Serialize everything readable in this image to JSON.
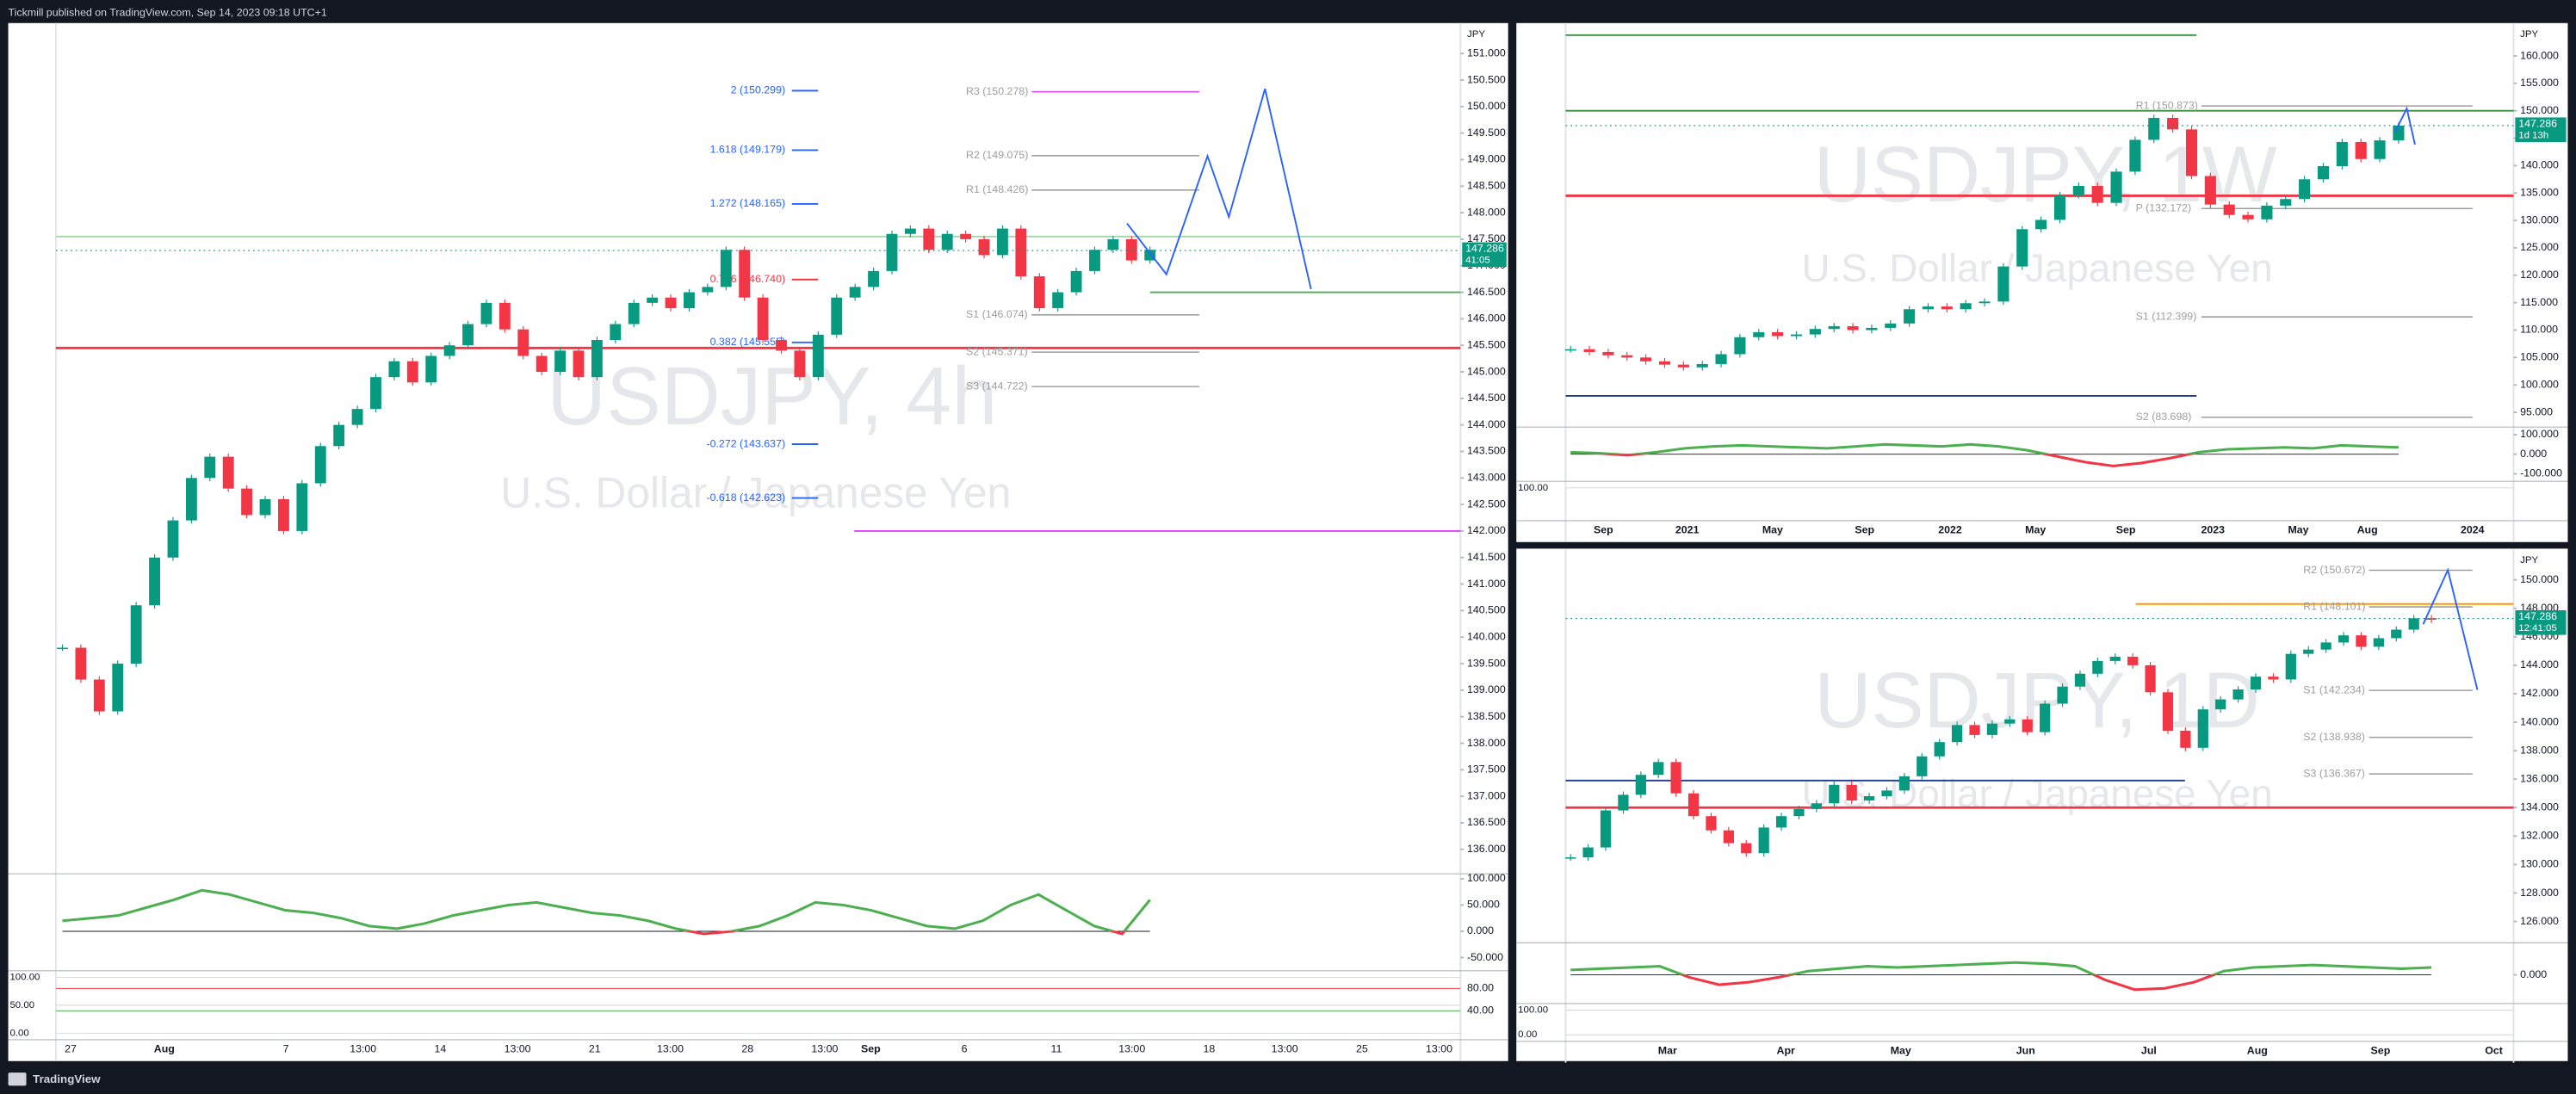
{
  "header": {
    "text": "Tickmill published on TradingView.com, Sep 14, 2023 09:18 UTC+1"
  },
  "footer": {
    "brand": "TradingView"
  },
  "panels": [
    {
      "symbol": "USDJPY, 4h",
      "description": "U.S. Dollar / Japanese Yen",
      "currency": "JPY",
      "ylim": [
        135.6,
        151.45
      ],
      "yticks": [
        {
          "value": 151,
          "label": "151.000"
        },
        {
          "value": 150.5,
          "label": "150.500"
        },
        {
          "value": 150,
          "label": "150.000"
        },
        {
          "value": 149.5,
          "label": "149.500"
        },
        {
          "value": 149,
          "label": "149.000"
        },
        {
          "value": 148.5,
          "label": "148.500"
        },
        {
          "value": 148,
          "label": "148.000"
        },
        {
          "value": 147.5,
          "label": "147.500"
        },
        {
          "value": 147,
          "label": "147.000"
        },
        {
          "value": 146.5,
          "label": "146.500"
        },
        {
          "value": 146,
          "label": "146.000"
        },
        {
          "value": 145.5,
          "label": "145.500"
        },
        {
          "value": 145,
          "label": "145.000"
        },
        {
          "value": 144.5,
          "label": "144.500"
        },
        {
          "value": 144,
          "label": "144.000"
        },
        {
          "value": 143.5,
          "label": "143.500"
        },
        {
          "value": 143,
          "label": "143.000"
        },
        {
          "value": 142.5,
          "label": "142.500"
        },
        {
          "value": 142,
          "label": "142.000"
        },
        {
          "value": 141.5,
          "label": "141.500"
        },
        {
          "value": 141,
          "label": "141.000"
        },
        {
          "value": 140.5,
          "label": "140.500"
        },
        {
          "value": 140,
          "label": "140.000"
        },
        {
          "value": 139.5,
          "label": "139.500"
        },
        {
          "value": 139,
          "label": "139.000"
        },
        {
          "value": 138.5,
          "label": "138.500"
        },
        {
          "value": 138,
          "label": "138.000"
        },
        {
          "value": 137.5,
          "label": "137.500"
        },
        {
          "value": 137,
          "label": "137.000"
        },
        {
          "value": 136.5,
          "label": "136.500"
        },
        {
          "value": 136,
          "label": "136.000"
        }
      ],
      "last_price": {
        "value": 147.286,
        "label": "147.286",
        "countdown": "41:05"
      },
      "levels": [
        {
          "label": "2 (150.299)",
          "value": 150.299,
          "kind": "fib",
          "color": "#2962ff"
        },
        {
          "label": "R3 (150.278)",
          "value": 150.278,
          "kind": "pivot",
          "color": "#e040fb"
        },
        {
          "label": "1.618 (149.179)",
          "value": 149.179,
          "kind": "fib",
          "color": "#2962ff"
        },
        {
          "label": "R2 (149.075)",
          "value": 149.075,
          "kind": "pivot",
          "color": "#9e9e9e"
        },
        {
          "label": "R1 (148.426)",
          "value": 148.426,
          "kind": "pivot",
          "color": "#9e9e9e"
        },
        {
          "label": "1.272 (148.165)",
          "value": 148.165,
          "kind": "fib",
          "color": "#2962ff"
        },
        {
          "label": "0.786 (146.740)",
          "value": 146.74,
          "kind": "fib",
          "color": "#f23645"
        },
        {
          "label": "S1 (146.074)",
          "value": 146.074,
          "kind": "pivot",
          "color": "#9e9e9e"
        },
        {
          "label": "0.382 (145.555)",
          "value": 145.555,
          "kind": "fib",
          "color": "#2962ff"
        },
        {
          "label": "S2 (145.371)",
          "value": 145.371,
          "kind": "pivot",
          "color": "#9e9e9e"
        },
        {
          "label": "S3 (144.722)",
          "value": 144.722,
          "kind": "pivot",
          "color": "#9e9e9e"
        },
        {
          "label": "-0.272 (143.637)",
          "value": 143.637,
          "kind": "fib",
          "color": "#2962ff"
        },
        {
          "label": "-0.618 (142.623)",
          "value": 142.623,
          "kind": "fib",
          "color": "#2962ff"
        }
      ],
      "lines": [
        {
          "value": 145.45,
          "color": "#f23645"
        },
        {
          "value": 146.5,
          "color": "#4caf50"
        },
        {
          "value": 147.55,
          "color": "#a5d6a7"
        },
        {
          "value": 142.0,
          "color": "#e040fb"
        }
      ],
      "closes": [
        139.8,
        139.2,
        138.6,
        139.5,
        140.6,
        141.5,
        142.2,
        143.0,
        143.4,
        142.8,
        142.3,
        142.6,
        142.0,
        142.9,
        143.6,
        144.0,
        144.3,
        144.9,
        145.2,
        144.8,
        145.3,
        145.5,
        145.9,
        146.3,
        145.8,
        145.3,
        145.0,
        145.4,
        144.9,
        145.6,
        145.9,
        146.3,
        146.4,
        146.2,
        146.5,
        146.6,
        147.3,
        146.4,
        145.6,
        145.4,
        144.9,
        145.7,
        146.4,
        146.6,
        146.9,
        147.6,
        147.7,
        147.3,
        147.6,
        147.5,
        147.2,
        147.7,
        146.8,
        146.2,
        146.5,
        146.9,
        147.3,
        147.5,
        147.1,
        147.3
      ],
      "oscillator": {
        "ylim": [
          -72,
          100
        ],
        "yticks": [
          {
            "value": 100,
            "label": "100.000"
          },
          {
            "value": 50,
            "label": "50.000"
          },
          {
            "value": 0,
            "label": "0.000"
          },
          {
            "value": -50,
            "label": "-50.000"
          }
        ],
        "values": [
          20,
          25,
          30,
          45,
          60,
          78,
          70,
          55,
          40,
          35,
          25,
          10,
          5,
          15,
          30,
          40,
          50,
          55,
          45,
          35,
          30,
          20,
          5,
          -5,
          0,
          10,
          30,
          55,
          50,
          40,
          25,
          10,
          5,
          20,
          50,
          70,
          40,
          10,
          -5,
          60
        ]
      },
      "stoch_ticks": [
        {
          "value": 100,
          "label": "100.00"
        },
        {
          "value": 50,
          "label": "50.00"
        },
        {
          "value": 0,
          "label": "0.00"
        }
      ],
      "stoch_right_ticks": [
        {
          "value": 80,
          "label": "80.00"
        },
        {
          "value": 40,
          "label": "40.00"
        }
      ],
      "time_labels": [
        "27",
        "Aug",
        "7",
        "13:00",
        "14",
        "13:00",
        "21",
        "13:00",
        "28",
        "13:00",
        "Sep",
        "6",
        "11",
        "13:00",
        "18",
        "13:00",
        "25",
        "13:00"
      ]
    },
    {
      "symbol": "USDJPY, 1W",
      "description": "U.S. Dollar / Japanese Yen",
      "currency": "JPY",
      "ylim": [
        92.9,
        164.8
      ],
      "yticks": [
        {
          "value": 160,
          "label": "160.000"
        },
        {
          "value": 155,
          "label": "155.000"
        },
        {
          "value": 150,
          "label": "150.000"
        },
        {
          "value": 145,
          "label": "145.000"
        },
        {
          "value": 140,
          "label": "140.000"
        },
        {
          "value": 135,
          "label": "135.000"
        },
        {
          "value": 130,
          "label": "130.000"
        },
        {
          "value": 125,
          "label": "125.000"
        },
        {
          "value": 120,
          "label": "120.000"
        },
        {
          "value": 115,
          "label": "115.000"
        },
        {
          "value": 110,
          "label": "110.000"
        },
        {
          "value": 105,
          "label": "105.000"
        },
        {
          "value": 100,
          "label": "100.000"
        },
        {
          "value": 95,
          "label": "95.000"
        }
      ],
      "last_price": {
        "value": 147.286,
        "label": "147.286",
        "countdown": "1d 13h"
      },
      "levels": [
        {
          "label": "R1 (150.873)",
          "value": 150.873,
          "kind": "pivot",
          "color": "#9e9e9e"
        },
        {
          "label": "P (132.172)",
          "value": 132.172,
          "kind": "pivot",
          "color": "#9e9e9e"
        },
        {
          "label": "S1 (112.399)",
          "value": 112.399,
          "kind": "pivot",
          "color": "#9e9e9e"
        },
        {
          "label": "S2 (83.698)",
          "value": 83.698,
          "kind": "pivot",
          "color": "#9e9e9e"
        }
      ],
      "lines": [
        {
          "value": 134.5,
          "color": "#f23645"
        },
        {
          "value": 150.0,
          "color": "#388e3c"
        },
        {
          "value": 163.8,
          "color": "#388e3c"
        },
        {
          "value": 98.0,
          "color": "#1e3a8a"
        }
      ],
      "closes": [
        106.5,
        106.0,
        105.4,
        105.0,
        104.3,
        103.7,
        103.2,
        103.8,
        105.6,
        108.7,
        109.6,
        108.9,
        109.2,
        110.2,
        110.7,
        110.0,
        110.4,
        111.2,
        113.8,
        114.3,
        113.8,
        114.9,
        115.2,
        121.6,
        128.4,
        130.1,
        134.6,
        136.3,
        133.2,
        138.9,
        144.7,
        148.7,
        146.6,
        138.1,
        132.9,
        131.0,
        130.2,
        132.7,
        133.9,
        137.5,
        139.9,
        144.3,
        141.2,
        144.6,
        147.3
      ],
      "oscillator": {
        "ylim": [
          -130,
          130
        ],
        "yticks": [
          {
            "value": 100,
            "label": "100.000"
          },
          {
            "value": 0,
            "label": "0.000"
          },
          {
            "value": -100,
            "label": "-100.000"
          }
        ],
        "values": [
          10,
          5,
          -5,
          10,
          30,
          40,
          45,
          40,
          35,
          30,
          40,
          50,
          45,
          40,
          50,
          40,
          20,
          -10,
          -40,
          -60,
          -45,
          -20,
          10,
          25,
          30,
          35,
          30,
          45,
          40,
          35
        ]
      },
      "stoch_ticks": [
        {
          "value": 100,
          "label": "100.00"
        }
      ],
      "stoch_right_ticks": [],
      "time_labels": [
        "Sep",
        "2021",
        "May",
        "Sep",
        "2022",
        "May",
        "Sep",
        "2023",
        "May",
        "Aug",
        "2024"
      ]
    },
    {
      "symbol": "USDJPY, 1D",
      "description": "U.S. Dollar / Japanese Yen",
      "currency": "JPY",
      "ylim": [
        124.73,
        151.73
      ],
      "yticks": [
        {
          "value": 150,
          "label": "150.000"
        },
        {
          "value": 148,
          "label": "148.000"
        },
        {
          "value": 146,
          "label": "146.000"
        },
        {
          "value": 144,
          "label": "144.000"
        },
        {
          "value": 142,
          "label": "142.000"
        },
        {
          "value": 140,
          "label": "140.000"
        },
        {
          "value": 138,
          "label": "138.000"
        },
        {
          "value": 136,
          "label": "136.000"
        },
        {
          "value": 134,
          "label": "134.000"
        },
        {
          "value": 132,
          "label": "132.000"
        },
        {
          "value": 130,
          "label": "130.000"
        },
        {
          "value": 128,
          "label": "128.000"
        },
        {
          "value": 126,
          "label": "126.000"
        }
      ],
      "last_price": {
        "value": 147.286,
        "label": "147.286",
        "countdown": "12:41:05"
      },
      "levels": [
        {
          "label": "R2 (150.672)",
          "value": 150.672,
          "kind": "pivot",
          "color": "#9e9e9e"
        },
        {
          "label": "R1 (148.101)",
          "value": 148.101,
          "kind": "pivot",
          "color": "#9e9e9e"
        },
        {
          "label": "S1 (142.234)",
          "value": 142.234,
          "kind": "pivot",
          "color": "#9e9e9e"
        },
        {
          "label": "S2 (138.938)",
          "value": 138.938,
          "kind": "pivot",
          "color": "#9e9e9e"
        },
        {
          "label": "S3 (136.367)",
          "value": 136.367,
          "kind": "pivot",
          "color": "#9e9e9e"
        }
      ],
      "lines": [
        {
          "value": 134.0,
          "color": "#f23645"
        },
        {
          "value": 148.3,
          "color": "#ff9800"
        },
        {
          "value": 135.9,
          "color": "#1e3a8a"
        }
      ],
      "closes": [
        130.5,
        131.2,
        133.8,
        134.9,
        136.3,
        137.2,
        135.0,
        133.4,
        132.4,
        131.5,
        130.8,
        132.6,
        133.4,
        133.9,
        134.3,
        135.6,
        134.5,
        134.8,
        135.2,
        136.2,
        137.6,
        138.6,
        139.8,
        139.1,
        139.9,
        140.2,
        139.3,
        141.3,
        142.5,
        143.4,
        144.3,
        144.6,
        144.0,
        142.1,
        139.4,
        138.2,
        140.9,
        141.6,
        142.3,
        143.2,
        143.0,
        144.8,
        145.1,
        145.6,
        146.1,
        145.3,
        145.9,
        146.5,
        147.3,
        147.2
      ],
      "oscillator": {
        "ylim": [
          -110,
          110
        ],
        "yticks": [
          {
            "value": 0,
            "label": "0.000"
          }
        ],
        "values": [
          20,
          25,
          30,
          35,
          -10,
          -40,
          -30,
          -10,
          15,
          25,
          35,
          30,
          35,
          40,
          45,
          50,
          45,
          35,
          -20,
          -60,
          -55,
          -30,
          15,
          30,
          35,
          40,
          35,
          30,
          25,
          30
        ]
      },
      "stoch_ticks": [
        {
          "value": 100,
          "label": "100.00"
        },
        {
          "value": 0,
          "label": "0.00"
        }
      ],
      "stoch_right_ticks": [],
      "time_labels": [
        "Mar",
        "Apr",
        "May",
        "Jun",
        "Jul",
        "Aug",
        "Sep",
        "Oct"
      ]
    }
  ]
}
